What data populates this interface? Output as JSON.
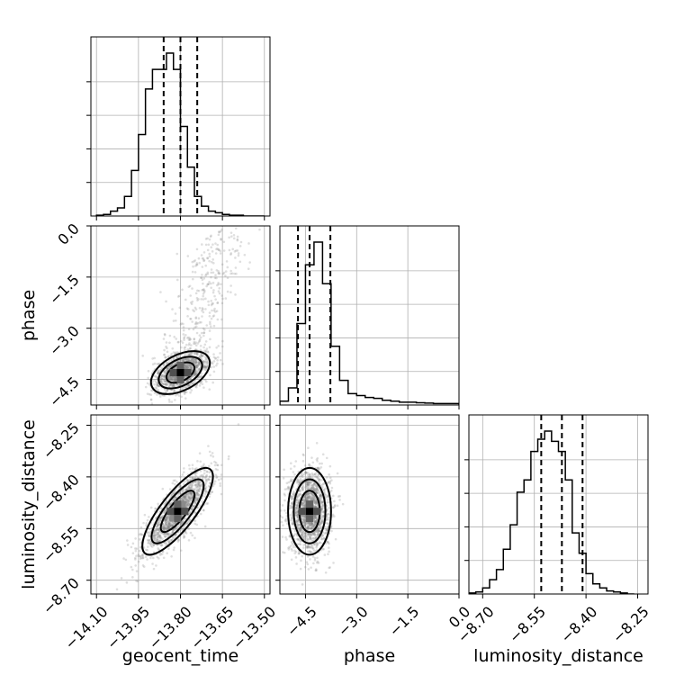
{
  "chart_data": {
    "type": "corner",
    "parameters": [
      "geocent_time",
      "phase",
      "luminosity_distance"
    ],
    "axes": {
      "geocent_time": {
        "label": "geocent_time",
        "range": [
          -14.12,
          -13.48
        ],
        "ticks": [
          -14.1,
          -13.95,
          -13.8,
          -13.65,
          -13.5
        ],
        "tick_labels": [
          "−14.10",
          "−13.95",
          "−13.80",
          "−13.65",
          "−13.50"
        ]
      },
      "phase": {
        "label": "phase",
        "range": [
          -5.25,
          0.0
        ],
        "ticks": [
          0.0,
          -1.5,
          -3.0,
          -4.5
        ],
        "tick_labels": [
          "0.0",
          "−1.5",
          "−3.0",
          "−4.5"
        ]
      },
      "luminosity_distance": {
        "label": "luminosity_distance",
        "range": [
          -8.74,
          -8.22
        ],
        "ticks": [
          -8.7,
          -8.55,
          -8.4,
          -8.25
        ],
        "tick_labels": [
          "−8.70",
          "−8.55",
          "−8.40",
          "−8.25"
        ]
      }
    },
    "histograms": {
      "geocent_time": {
        "bins": [
          -14.1,
          -14.075,
          -14.05,
          -14.025,
          -14.0,
          -13.975,
          -13.95,
          -13.925,
          -13.9,
          -13.875,
          -13.85,
          -13.825,
          -13.8,
          -13.775,
          -13.75,
          -13.725,
          -13.7,
          -13.675,
          -13.65,
          -13.625,
          -13.6,
          -13.575,
          -13.55,
          -13.525,
          -13.5
        ],
        "counts": [
          0.5,
          1,
          3,
          5,
          12,
          28,
          50,
          78,
          90,
          90,
          100,
          90,
          55,
          30,
          12,
          6,
          3,
          2,
          1,
          0.5,
          0.5,
          0,
          0,
          0
        ],
        "quantiles": [
          -13.86,
          -13.8,
          -13.74
        ]
      },
      "phase": {
        "bins": [
          -5.25,
          -5.0,
          -4.75,
          -4.5,
          -4.25,
          -4.0,
          -3.75,
          -3.5,
          -3.25,
          -3.0,
          -2.75,
          -2.5,
          -2.25,
          -2.0,
          -1.75,
          -1.5,
          -1.25,
          -1.0,
          -0.75,
          -0.5,
          -0.25,
          0.0
        ],
        "counts": [
          2,
          9,
          43,
          74,
          86,
          64,
          31,
          13,
          6,
          5,
          4,
          3.5,
          2.5,
          2,
          1.5,
          1.5,
          1.2,
          1,
          0.8,
          0.8,
          0.8
        ],
        "quantiles": [
          -4.72,
          -4.38,
          -3.77
        ]
      },
      "luminosity_distance": {
        "bins": [
          -8.74,
          -8.72,
          -8.7,
          -8.68,
          -8.66,
          -8.64,
          -8.62,
          -8.6,
          -8.58,
          -8.56,
          -8.54,
          -8.52,
          -8.5,
          -8.48,
          -8.46,
          -8.44,
          -8.42,
          -8.4,
          -8.38,
          -8.36,
          -8.34,
          -8.32,
          -8.3,
          -8.28,
          -8.26
        ],
        "counts": [
          0.5,
          1,
          3,
          7,
          12,
          22,
          34,
          50,
          56,
          70,
          76,
          80,
          75,
          70,
          56,
          30,
          20,
          10,
          5,
          3,
          1.5,
          1,
          0.5,
          0
        ],
        "quantiles": [
          -8.53,
          -8.47,
          -8.41
        ]
      }
    },
    "scatter_pairs": [
      {
        "x": "geocent_time",
        "y": "phase",
        "center": [
          -13.8,
          -4.3
        ],
        "sd": [
          0.05,
          0.3
        ],
        "correlation": 0.45,
        "tail": "upward toward phase 0"
      },
      {
        "x": "geocent_time",
        "y": "luminosity_distance",
        "center": [
          -13.81,
          -8.5
        ],
        "sd": [
          0.06,
          0.06
        ],
        "correlation": 0.8
      },
      {
        "x": "phase",
        "y": "luminosity_distance",
        "center": [
          -4.38,
          -8.5
        ],
        "sd": [
          0.3,
          0.06
        ],
        "correlation": 0.0
      }
    ],
    "grid": true
  }
}
